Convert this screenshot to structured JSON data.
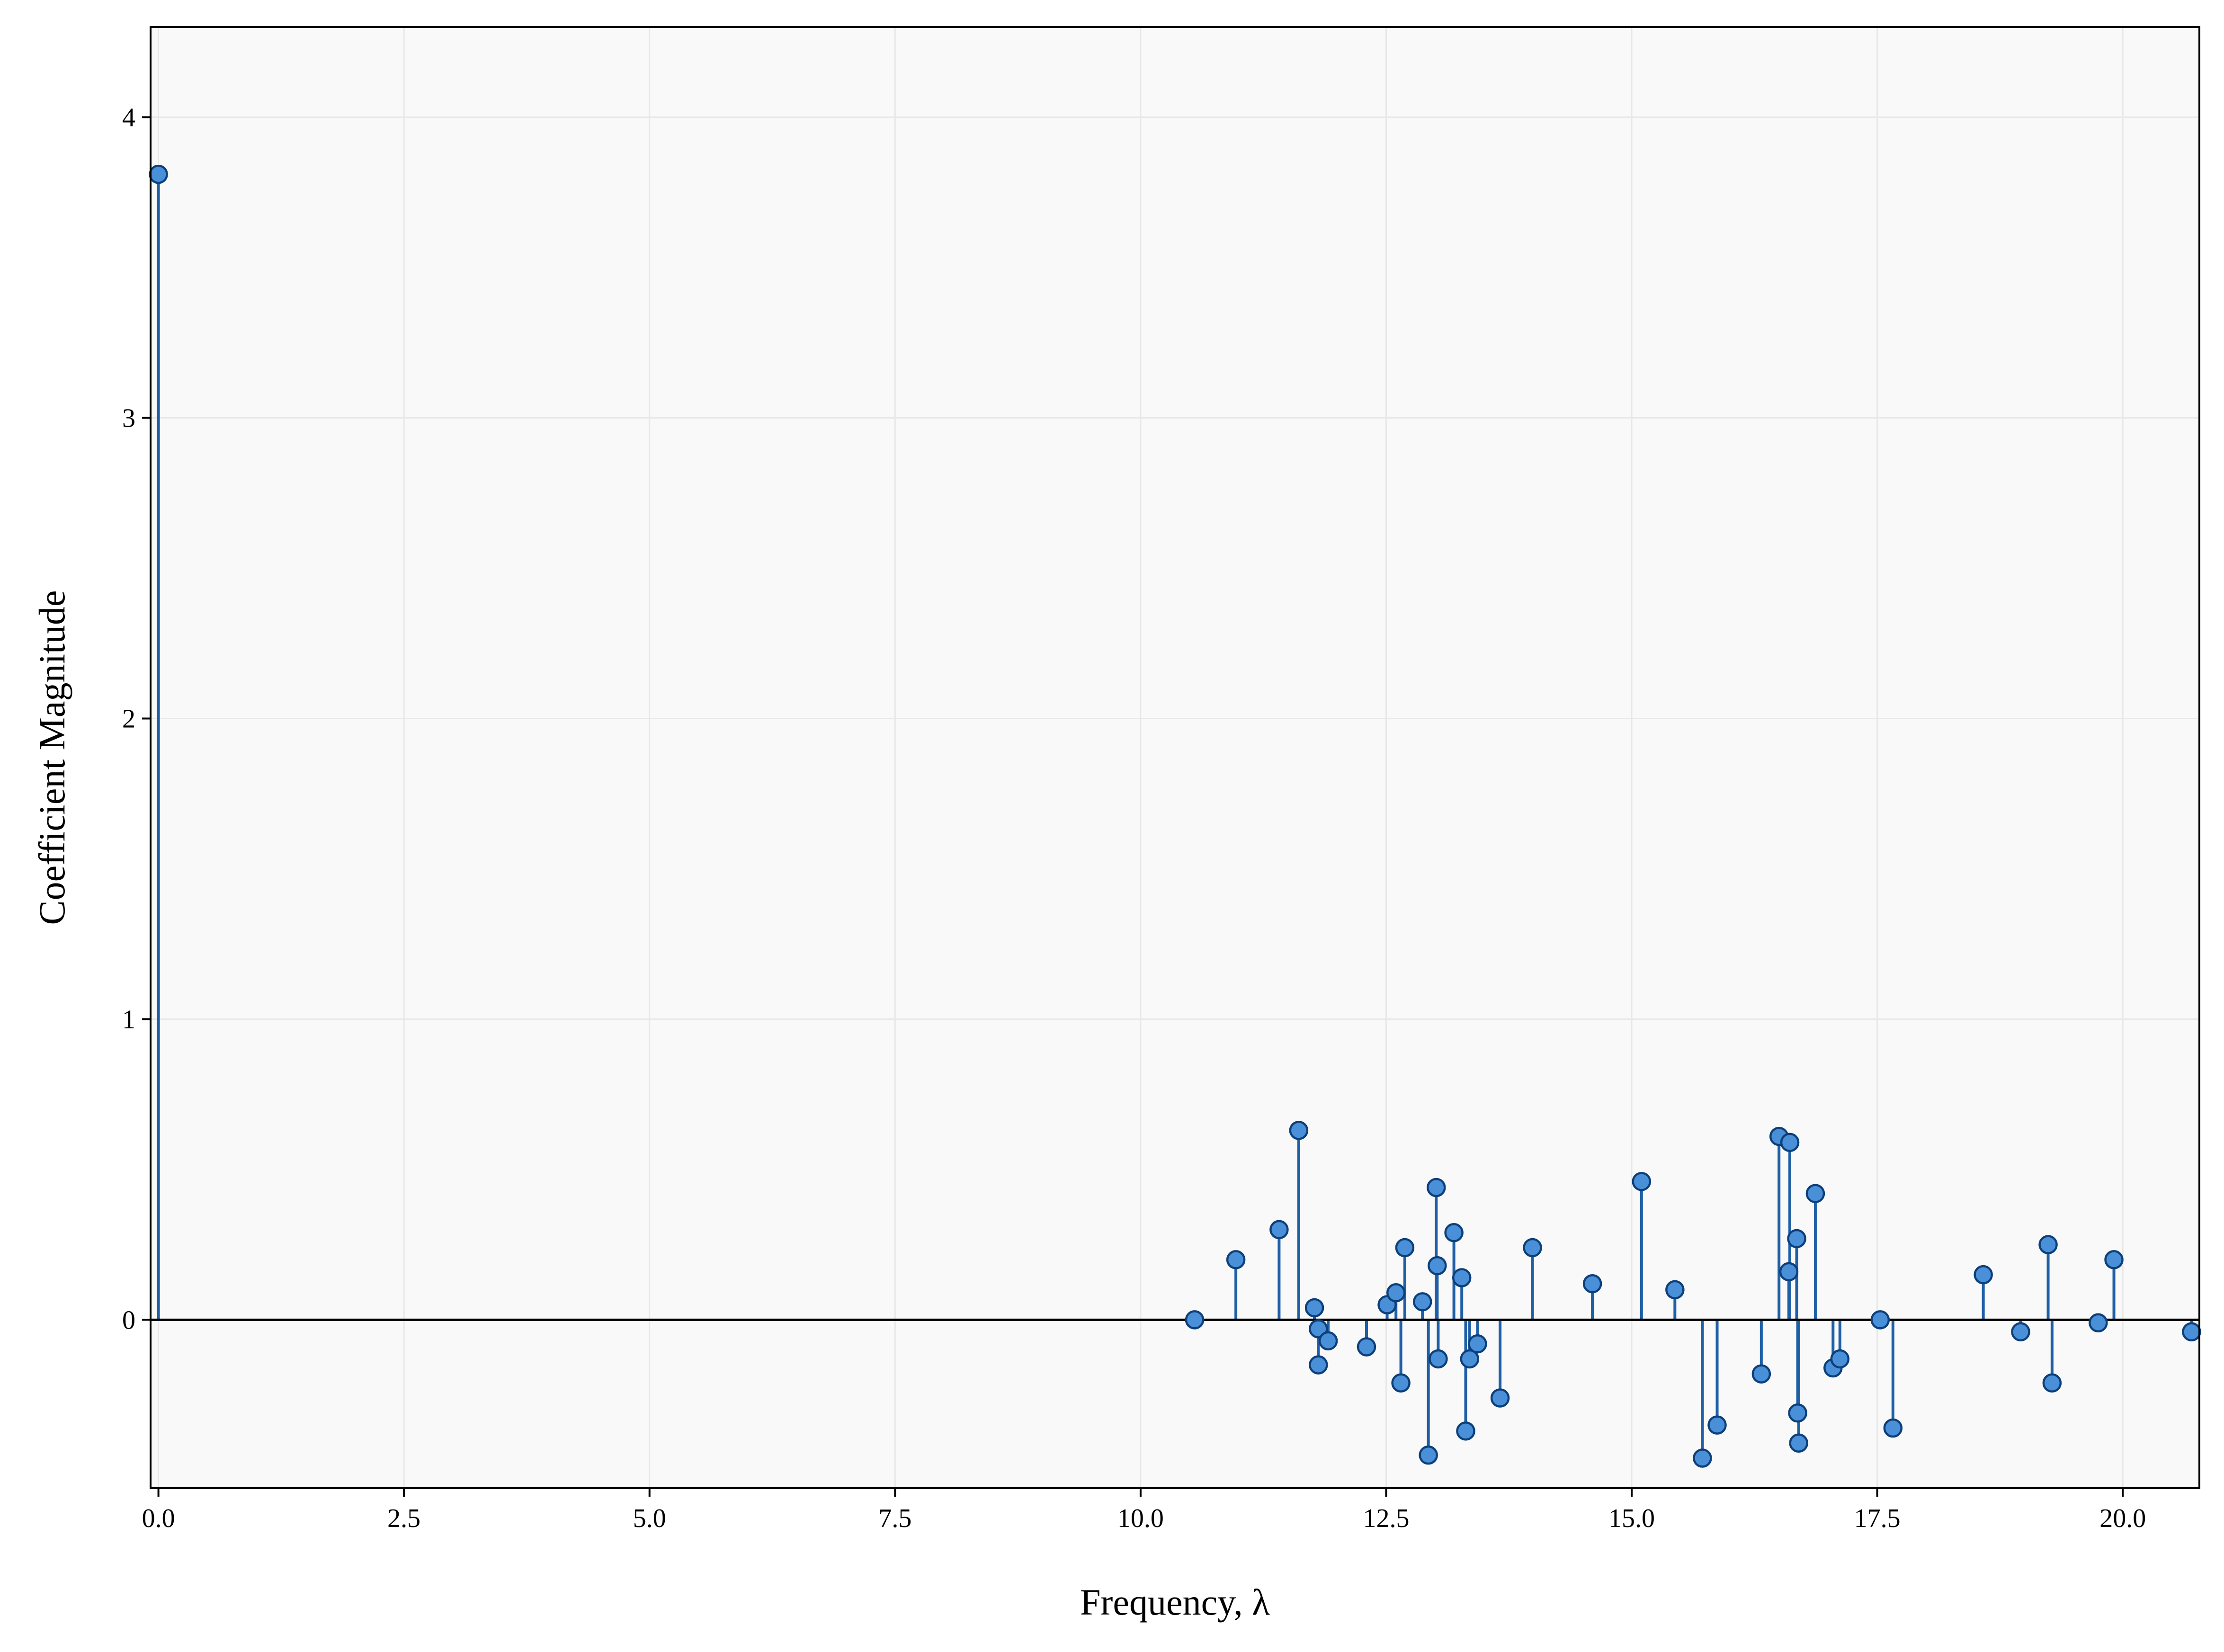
{
  "chart_data": {
    "type": "stem",
    "title": "",
    "xlabel": "Frequency, λ",
    "ylabel": "Coefficient Magnitude",
    "xlim": [
      -0.08,
      20.78
    ],
    "ylim": [
      -0.56,
      4.3
    ],
    "xticks": [
      0.0,
      2.5,
      5.0,
      7.5,
      10.0,
      12.5,
      15.0,
      17.5,
      20.0
    ],
    "xtick_labels": [
      "0.0",
      "2.5",
      "5.0",
      "7.5",
      "10.0",
      "12.5",
      "15.0",
      "17.5",
      "20.0"
    ],
    "yticks": [
      0,
      1,
      2,
      3,
      4
    ],
    "ytick_labels": [
      "0",
      "1",
      "2",
      "3",
      "4"
    ],
    "grid": true,
    "baseline": 0,
    "colors": {
      "stem": "#1f5fa6",
      "marker_fill": "#4a90d9",
      "marker_edge": "#0d3f7a",
      "baseline": "#000000",
      "plot_background": "#f9f9f9",
      "grid": "#e8e8e8"
    },
    "points": [
      {
        "x": 0.0,
        "y": 3.81
      },
      {
        "x": 10.55,
        "y": 0.0
      },
      {
        "x": 10.97,
        "y": 0.2
      },
      {
        "x": 11.41,
        "y": 0.3
      },
      {
        "x": 11.61,
        "y": 0.63
      },
      {
        "x": 11.77,
        "y": 0.04
      },
      {
        "x": 11.81,
        "y": -0.03
      },
      {
        "x": 11.81,
        "y": -0.15
      },
      {
        "x": 11.91,
        "y": -0.07
      },
      {
        "x": 12.3,
        "y": -0.09
      },
      {
        "x": 12.51,
        "y": 0.05
      },
      {
        "x": 12.6,
        "y": 0.09
      },
      {
        "x": 12.65,
        "y": -0.21
      },
      {
        "x": 12.69,
        "y": 0.24
      },
      {
        "x": 12.87,
        "y": 0.06
      },
      {
        "x": 12.93,
        "y": -0.45
      },
      {
        "x": 13.01,
        "y": 0.44
      },
      {
        "x": 13.02,
        "y": 0.18
      },
      {
        "x": 13.03,
        "y": -0.13
      },
      {
        "x": 13.19,
        "y": 0.29
      },
      {
        "x": 13.27,
        "y": 0.14
      },
      {
        "x": 13.31,
        "y": -0.37
      },
      {
        "x": 13.35,
        "y": -0.13
      },
      {
        "x": 13.43,
        "y": -0.08
      },
      {
        "x": 13.66,
        "y": -0.26
      },
      {
        "x": 13.99,
        "y": 0.24
      },
      {
        "x": 14.6,
        "y": 0.12
      },
      {
        "x": 15.1,
        "y": 0.46
      },
      {
        "x": 15.44,
        "y": 0.1
      },
      {
        "x": 15.72,
        "y": -0.46
      },
      {
        "x": 15.87,
        "y": -0.35
      },
      {
        "x": 16.32,
        "y": -0.18
      },
      {
        "x": 16.5,
        "y": 0.61
      },
      {
        "x": 16.6,
        "y": 0.16
      },
      {
        "x": 16.61,
        "y": 0.59
      },
      {
        "x": 16.68,
        "y": 0.27
      },
      {
        "x": 16.69,
        "y": -0.31
      },
      {
        "x": 16.7,
        "y": -0.41
      },
      {
        "x": 16.87,
        "y": 0.42
      },
      {
        "x": 17.05,
        "y": -0.16
      },
      {
        "x": 17.12,
        "y": -0.13
      },
      {
        "x": 17.53,
        "y": 0.0
      },
      {
        "x": 17.66,
        "y": -0.36
      },
      {
        "x": 18.58,
        "y": 0.15
      },
      {
        "x": 18.96,
        "y": -0.04
      },
      {
        "x": 19.24,
        "y": 0.25
      },
      {
        "x": 19.28,
        "y": -0.21
      },
      {
        "x": 19.75,
        "y": -0.01
      },
      {
        "x": 19.91,
        "y": 0.2
      },
      {
        "x": 20.7,
        "y": -0.04
      }
    ]
  }
}
